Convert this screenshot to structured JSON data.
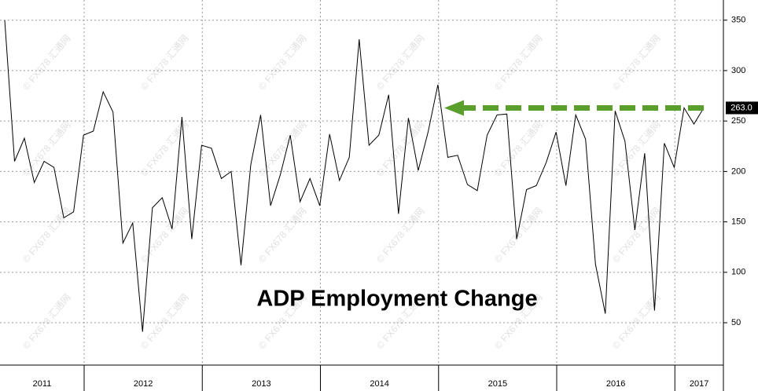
{
  "chart_data": {
    "type": "line",
    "title": "ADP Employment Change",
    "watermark": "© FX678 汇通网",
    "years": [
      "2011",
      "2012",
      "2013",
      "2014",
      "2015",
      "2016",
      "2017"
    ],
    "values": [
      350,
      210,
      233,
      189,
      210,
      204,
      154,
      160,
      236,
      240,
      279,
      259,
      129,
      149,
      41,
      164,
      174,
      143,
      254,
      133,
      226,
      223,
      193,
      200,
      107,
      207,
      256,
      166,
      197,
      236,
      170,
      193,
      166,
      237,
      191,
      214,
      331,
      226,
      236,
      276,
      158,
      253,
      201,
      239,
      286,
      214,
      216,
      187,
      181,
      236,
      256,
      257,
      133,
      182,
      186,
      209,
      239,
      186,
      256,
      232,
      108,
      59,
      260,
      230,
      142,
      218,
      62,
      228,
      204,
      263,
      247,
      263
    ],
    "last_value_label": "263.0",
    "color": "#000000",
    "arrow_color": "#5a9e2c",
    "ylim": [
      8,
      370
    ],
    "yticks": [
      50,
      100,
      150,
      200,
      250,
      300,
      350
    ],
    "grid": true
  }
}
